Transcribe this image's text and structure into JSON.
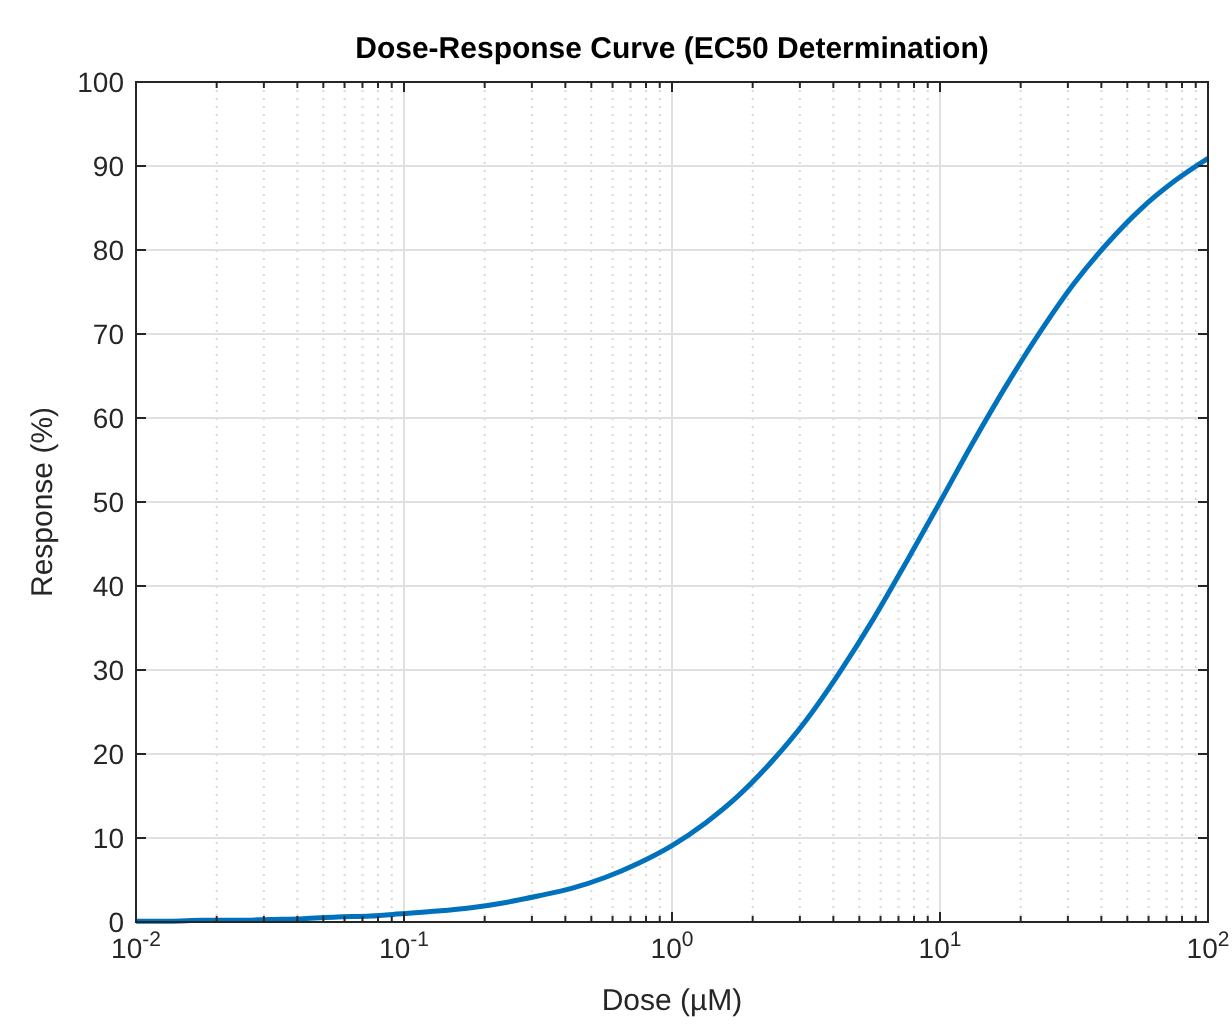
{
  "chart_data": {
    "type": "line",
    "title": "Dose-Response Curve (EC50 Determination)",
    "xlabel": "Dose (µM)",
    "ylabel": "Response (%)",
    "log": "x",
    "grid": true,
    "marker": "none",
    "line_style": "solid",
    "x": [
      0.01,
      0.01334,
      0.01778,
      0.02371,
      0.03162,
      0.04217,
      0.05623,
      0.07499,
      0.1,
      0.1334,
      0.1778,
      0.2371,
      0.3162,
      0.4217,
      0.5623,
      0.7499,
      1,
      1.334,
      1.778,
      2.371,
      3.162,
      4.217,
      5.623,
      7.499,
      10,
      13.34,
      17.78,
      23.71,
      31.62,
      42.17,
      56.23,
      74.99,
      100
    ],
    "series": [
      {
        "color": "#0072bd",
        "values": [
          0.1,
          0.1,
          0.2,
          0.2,
          0.3,
          0.4,
          0.6,
          0.7,
          1.0,
          1.3,
          1.7,
          2.3,
          3.1,
          4.0,
          5.3,
          7.0,
          9.1,
          11.8,
          15.1,
          19.2,
          24.0,
          29.7,
          36.0,
          42.9,
          50.0,
          57.2,
          64.0,
          70.3,
          76.0,
          80.8,
          84.9,
          88.2,
          90.9
        ]
      }
    ],
    "xlim": [
      0.01,
      100
    ],
    "ylim": [
      0,
      100
    ],
    "xticks": [
      {
        "value": 0.01,
        "label": "10$^{-2}$"
      },
      {
        "value": 0.02,
        "label": null
      },
      {
        "value": 0.03,
        "label": null
      },
      {
        "value": 0.04,
        "label": null
      },
      {
        "value": 0.05,
        "label": null
      },
      {
        "value": 0.06,
        "label": null
      },
      {
        "value": 0.07,
        "label": null
      },
      {
        "value": 0.08,
        "label": null
      },
      {
        "value": 0.09,
        "label": null
      },
      {
        "value": 0.1,
        "label": "10$^{-1}$"
      },
      {
        "value": 0.2,
        "label": null
      },
      {
        "value": 0.3,
        "label": null
      },
      {
        "value": 0.4,
        "label": null
      },
      {
        "value": 0.5,
        "label": null
      },
      {
        "value": 0.6,
        "label": null
      },
      {
        "value": 0.7,
        "label": null
      },
      {
        "value": 0.8,
        "label": null
      },
      {
        "value": 0.9,
        "label": null
      },
      {
        "value": 1,
        "label": "10$^{0}$"
      },
      {
        "value": 2,
        "label": null
      },
      {
        "value": 3,
        "label": null
      },
      {
        "value": 4,
        "label": null
      },
      {
        "value": 5,
        "label": null
      },
      {
        "value": 6,
        "label": null
      },
      {
        "value": 7,
        "label": null
      },
      {
        "value": 8,
        "label": null
      },
      {
        "value": 9,
        "label": null
      },
      {
        "value": 10,
        "label": "10$^{1}$"
      },
      {
        "value": 20,
        "label": null
      },
      {
        "value": 30,
        "label": null
      },
      {
        "value": 40,
        "label": null
      },
      {
        "value": 50,
        "label": null
      },
      {
        "value": 60,
        "label": null
      },
      {
        "value": 70,
        "label": null
      },
      {
        "value": 80,
        "label": null
      },
      {
        "value": 90,
        "label": null
      },
      {
        "value": 100,
        "label": "10$^{2}$"
      }
    ],
    "yticks": [
      0,
      10,
      20,
      30,
      40,
      50,
      60,
      70,
      80,
      90,
      100
    ]
  }
}
